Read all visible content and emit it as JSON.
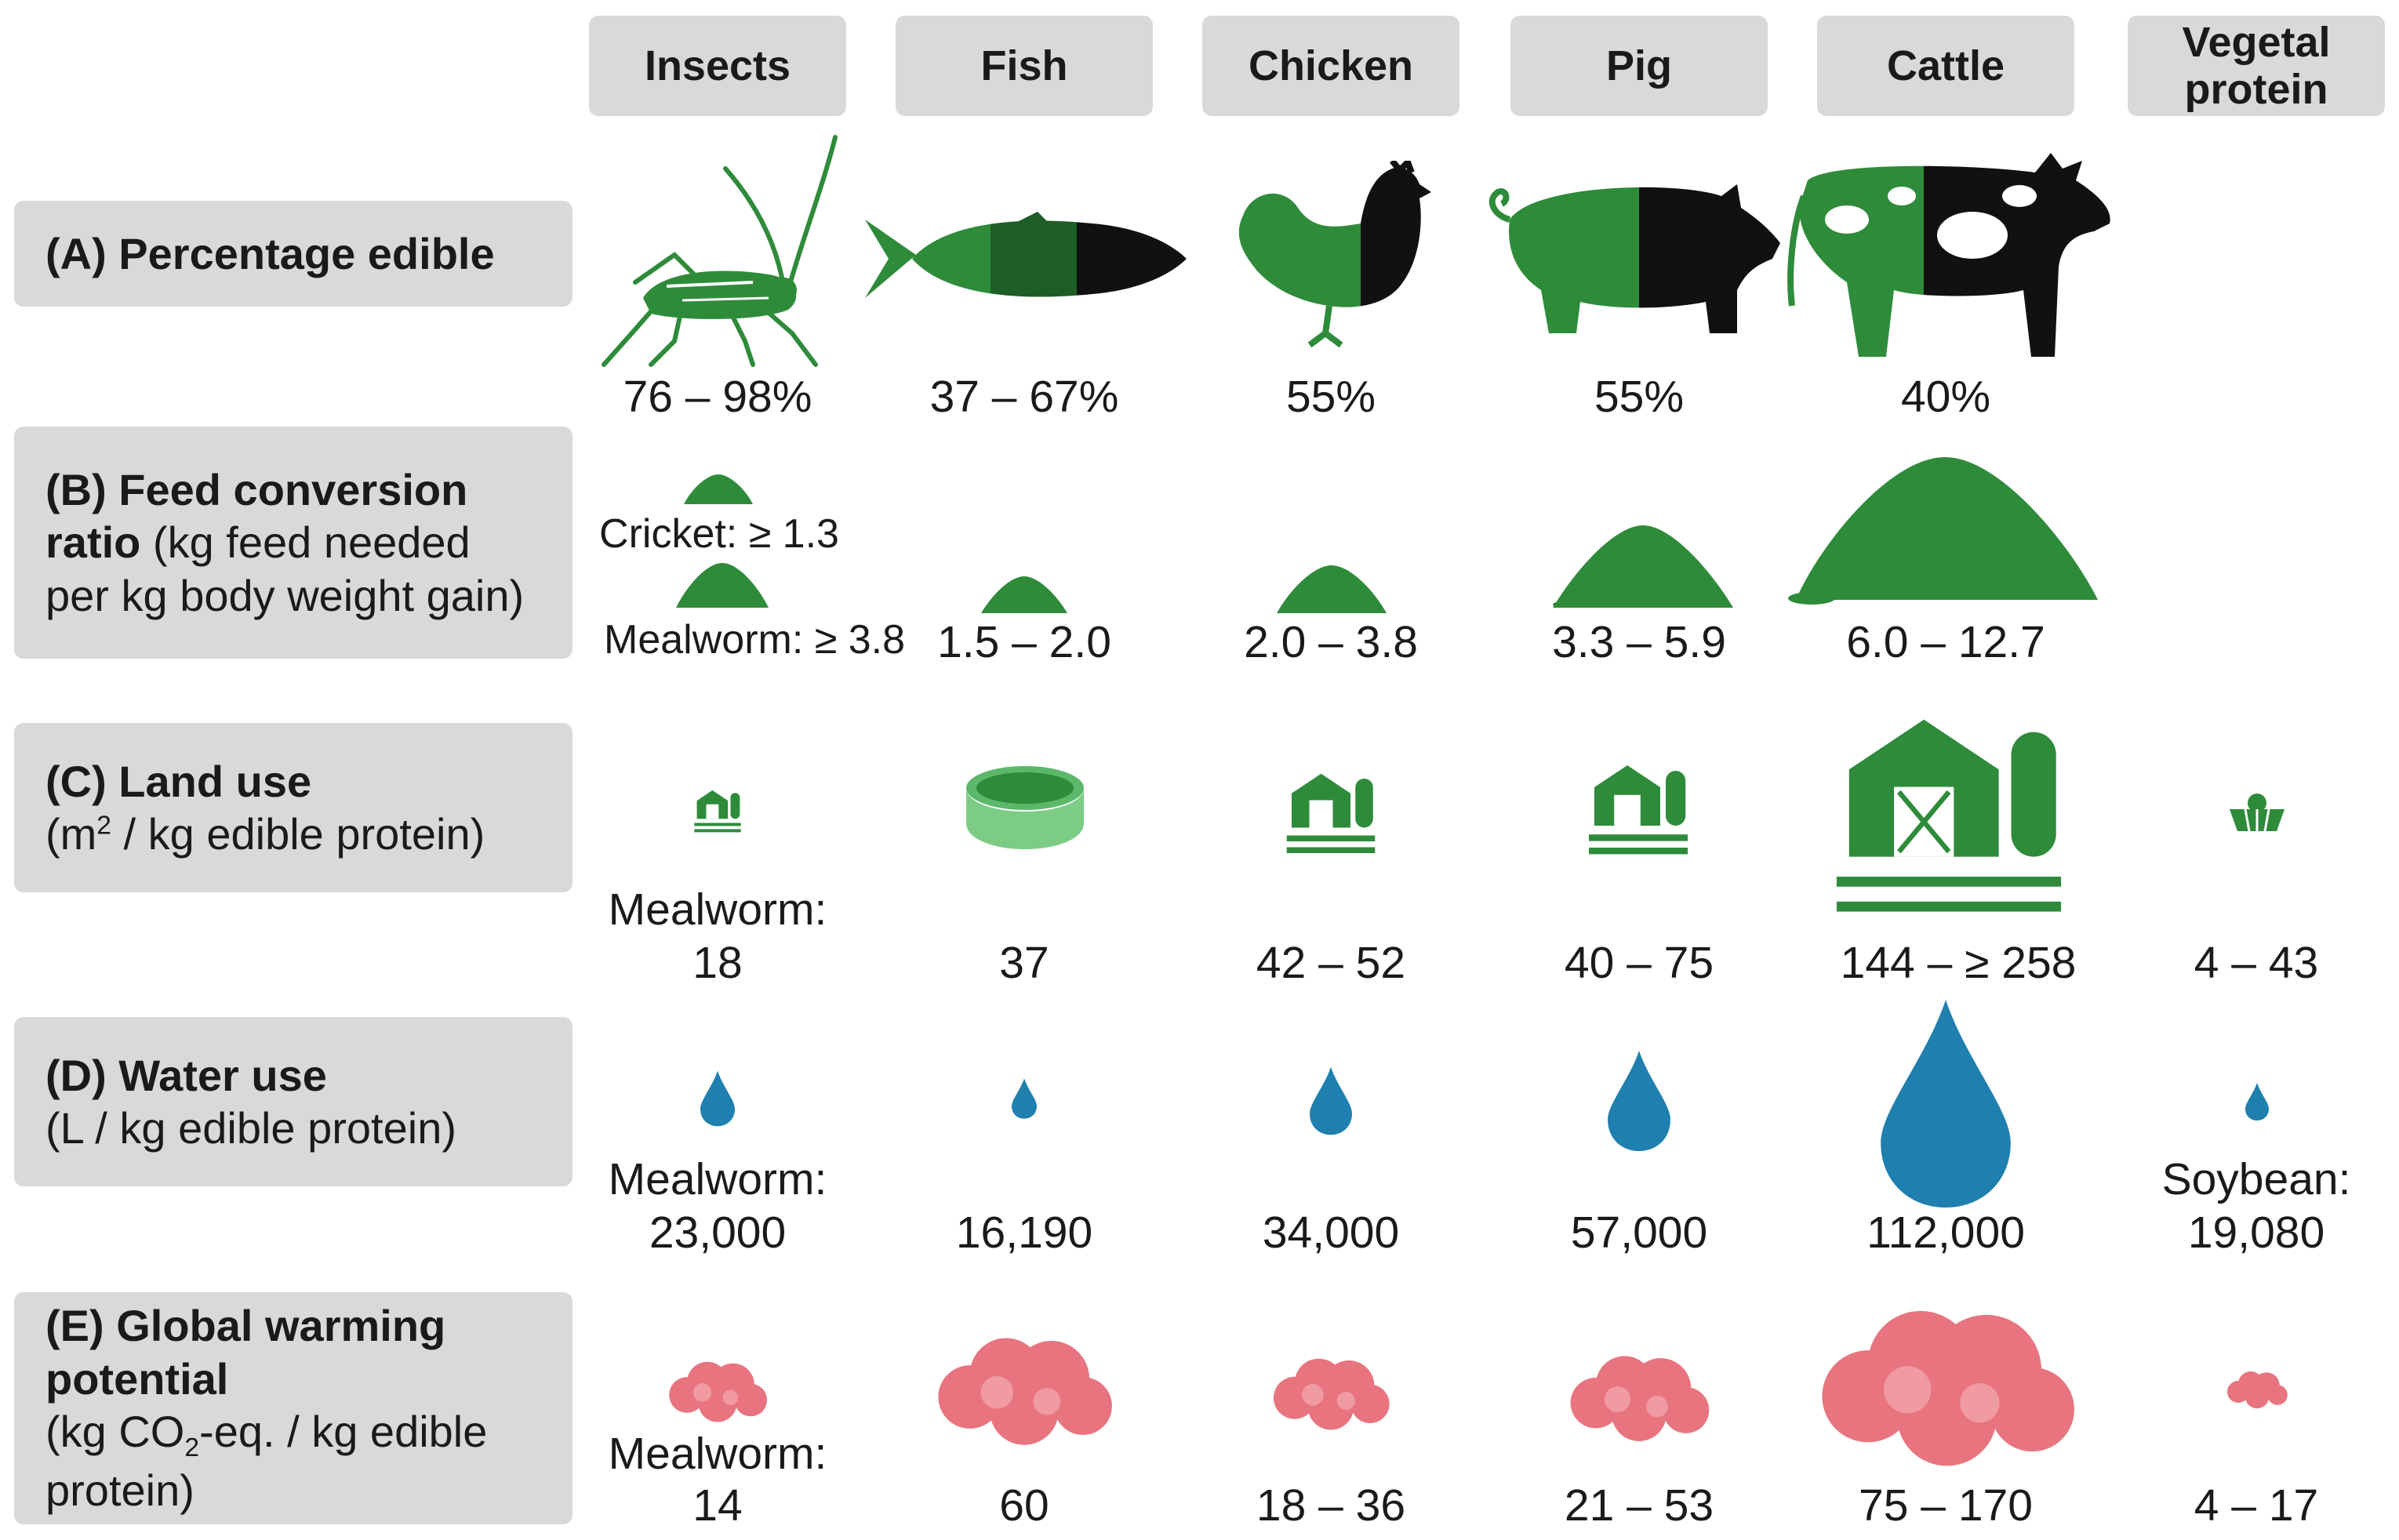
{
  "columns": [
    {
      "key": "insects",
      "label": "Insects"
    },
    {
      "key": "fish",
      "label": "Fish"
    },
    {
      "key": "chicken",
      "label": "Chicken"
    },
    {
      "key": "pig",
      "label": "Pig"
    },
    {
      "key": "cattle",
      "label": "Cattle"
    },
    {
      "key": "vegetal",
      "label": "Vegetal protein"
    }
  ],
  "rows": {
    "A": {
      "title": "(A) Percentage edible"
    },
    "B": {
      "title": "(B) Feed conversion ratio",
      "subtitle": " (kg feed needed per kg body weight gain)"
    },
    "C": {
      "title": "(C) Land use",
      "subtitle_pre": "(m",
      "subtitle_sup": "2",
      "subtitle_post": " / kg edible protein)"
    },
    "D": {
      "title": "(D) Water use",
      "subtitle": "(L / kg edible protein)"
    },
    "E": {
      "title": "(E) Global warming potential",
      "subtitle_pre": "(kg CO",
      "subtitle_sub": "2",
      "subtitle_post": "-eq. / kg edible protein)"
    }
  },
  "values": {
    "A": {
      "insects": "76 – 98%",
      "fish": "37 – 67%",
      "chicken": "55%",
      "pig": "55%",
      "cattle": "40%"
    },
    "B": {
      "insects_cricket": "Cricket: ≥ 1.3",
      "insects_mealworm": "Mealworm: ≥ 3.8",
      "fish": "1.5 – 2.0",
      "chicken": "2.0 – 3.8",
      "pig": "3.3 – 5.9",
      "cattle": "6.0 – 12.7"
    },
    "C": {
      "insects_label": "Mealworm:",
      "insects": "18",
      "fish": "37",
      "chicken": "42 – 52",
      "pig": "40 – 75",
      "cattle": "144 – ≥ 258",
      "vegetal": "4 – 43"
    },
    "D": {
      "insects_label": "Mealworm:",
      "insects": "23,000",
      "fish": "16,190",
      "chicken": "34,000",
      "pig": "57,000",
      "cattle": "112,000",
      "vegetal_label": "Soybean:",
      "vegetal": "19,080"
    },
    "E": {
      "insects_label": "Mealworm:",
      "insects": "14",
      "fish": "60",
      "chicken": "18 – 36",
      "pig": "21 – 53",
      "cattle": "75 – 170",
      "vegetal": "4 – 17"
    }
  },
  "colors": {
    "green": "#2e8b3a",
    "dark_green": "#1d6b2a",
    "black": "#111111",
    "water": "#1f7fae",
    "co2": "#e8747f",
    "co2_light": "#f09aa2",
    "header_bg": "#d9d9d9"
  },
  "icons": [
    "cricket-icon",
    "fish-icon",
    "chicken-icon",
    "pig-icon",
    "cow-icon",
    "feed-pile-icon",
    "farm-icon",
    "pond-icon",
    "field-icon",
    "water-drop-icon",
    "co2-cloud-icon"
  ]
}
